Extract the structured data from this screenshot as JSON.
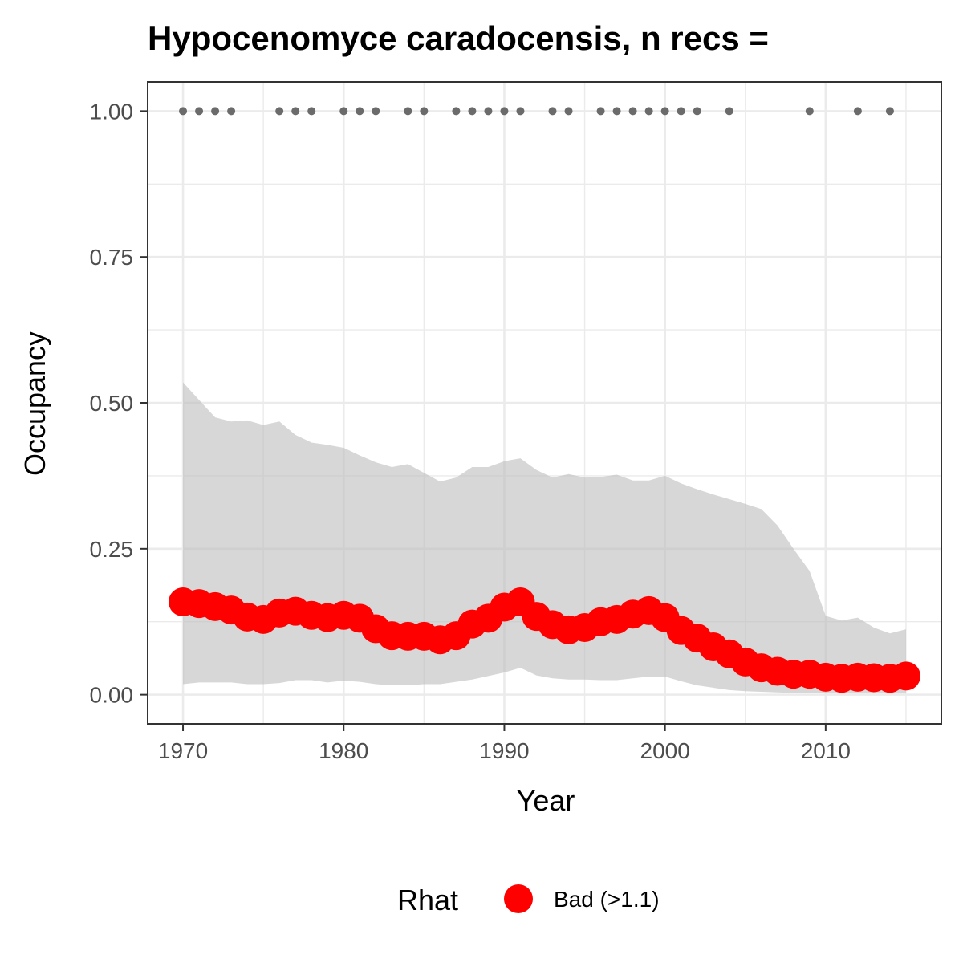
{
  "chart_data": {
    "type": "line",
    "title": "Hypocenomyce caradocensis, n recs =",
    "xlabel": "Year",
    "ylabel": "Occupancy",
    "xlim": [
      1967.8,
      2017.2
    ],
    "ylim": [
      -0.05,
      1.05
    ],
    "x_ticks": [
      1970,
      1980,
      1990,
      2000,
      2010
    ],
    "x_tick_labels": [
      "1970",
      "1980",
      "1990",
      "2000",
      "2010"
    ],
    "y_ticks": [
      0,
      0.25,
      0.5,
      0.75,
      1
    ],
    "y_tick_labels": [
      "0.00",
      "0.25",
      "0.50",
      "0.75",
      "1.00"
    ],
    "grid": true,
    "legend": {
      "title": "Rhat",
      "placement": "bottom",
      "entries": [
        {
          "label": "Bad (>1.1)",
          "color": "#ff0000"
        }
      ]
    },
    "colors": {
      "mean": "#ff0000",
      "ribbon": "#d6d6d6",
      "records": "#6b6b6b",
      "grid": "#ebebeb",
      "border": "#333333"
    },
    "years": [
      1970,
      1971,
      1972,
      1973,
      1974,
      1975,
      1976,
      1977,
      1978,
      1979,
      1980,
      1981,
      1982,
      1983,
      1984,
      1985,
      1986,
      1987,
      1988,
      1989,
      1990,
      1991,
      1992,
      1993,
      1994,
      1995,
      1996,
      1997,
      1998,
      1999,
      2000,
      2001,
      2002,
      2003,
      2004,
      2005,
      2006,
      2007,
      2008,
      2009,
      2010,
      2011,
      2012,
      2013,
      2014,
      2015
    ],
    "series": [
      {
        "name": "Bad (>1.1)",
        "values": [
          0.159,
          0.156,
          0.151,
          0.145,
          0.133,
          0.129,
          0.14,
          0.143,
          0.136,
          0.132,
          0.136,
          0.131,
          0.113,
          0.101,
          0.1,
          0.1,
          0.094,
          0.101,
          0.121,
          0.131,
          0.15,
          0.159,
          0.134,
          0.12,
          0.111,
          0.115,
          0.125,
          0.129,
          0.138,
          0.144,
          0.132,
          0.11,
          0.097,
          0.082,
          0.07,
          0.056,
          0.046,
          0.04,
          0.035,
          0.035,
          0.03,
          0.028,
          0.03,
          0.029,
          0.028,
          0.032
        ]
      }
    ],
    "ribbon": {
      "upper": [
        0.535,
        0.505,
        0.475,
        0.468,
        0.47,
        0.462,
        0.468,
        0.445,
        0.432,
        0.428,
        0.423,
        0.41,
        0.398,
        0.39,
        0.395,
        0.38,
        0.365,
        0.372,
        0.39,
        0.39,
        0.4,
        0.405,
        0.385,
        0.372,
        0.378,
        0.372,
        0.373,
        0.377,
        0.367,
        0.367,
        0.375,
        0.362,
        0.352,
        0.343,
        0.335,
        0.327,
        0.318,
        0.29,
        0.25,
        0.212,
        0.135,
        0.127,
        0.132,
        0.115,
        0.105,
        0.112
      ],
      "lower": [
        0.018,
        0.021,
        0.021,
        0.021,
        0.018,
        0.018,
        0.02,
        0.025,
        0.025,
        0.021,
        0.024,
        0.022,
        0.018,
        0.016,
        0.016,
        0.018,
        0.018,
        0.022,
        0.026,
        0.032,
        0.038,
        0.046,
        0.033,
        0.028,
        0.026,
        0.026,
        0.025,
        0.025,
        0.028,
        0.031,
        0.031,
        0.023,
        0.016,
        0.012,
        0.008,
        0.006,
        0.005,
        0.004,
        0.003,
        0.003,
        0.002,
        0.002,
        0.002,
        0.002,
        0.002,
        0.002
      ]
    },
    "record_years": [
      1970,
      1971,
      1972,
      1973,
      1976,
      1977,
      1978,
      1980,
      1981,
      1982,
      1984,
      1985,
      1987,
      1988,
      1989,
      1990,
      1991,
      1993,
      1994,
      1996,
      1997,
      1998,
      1999,
      2000,
      2001,
      2002,
      2004,
      2009,
      2012,
      2014
    ],
    "record_value": 1.0
  }
}
